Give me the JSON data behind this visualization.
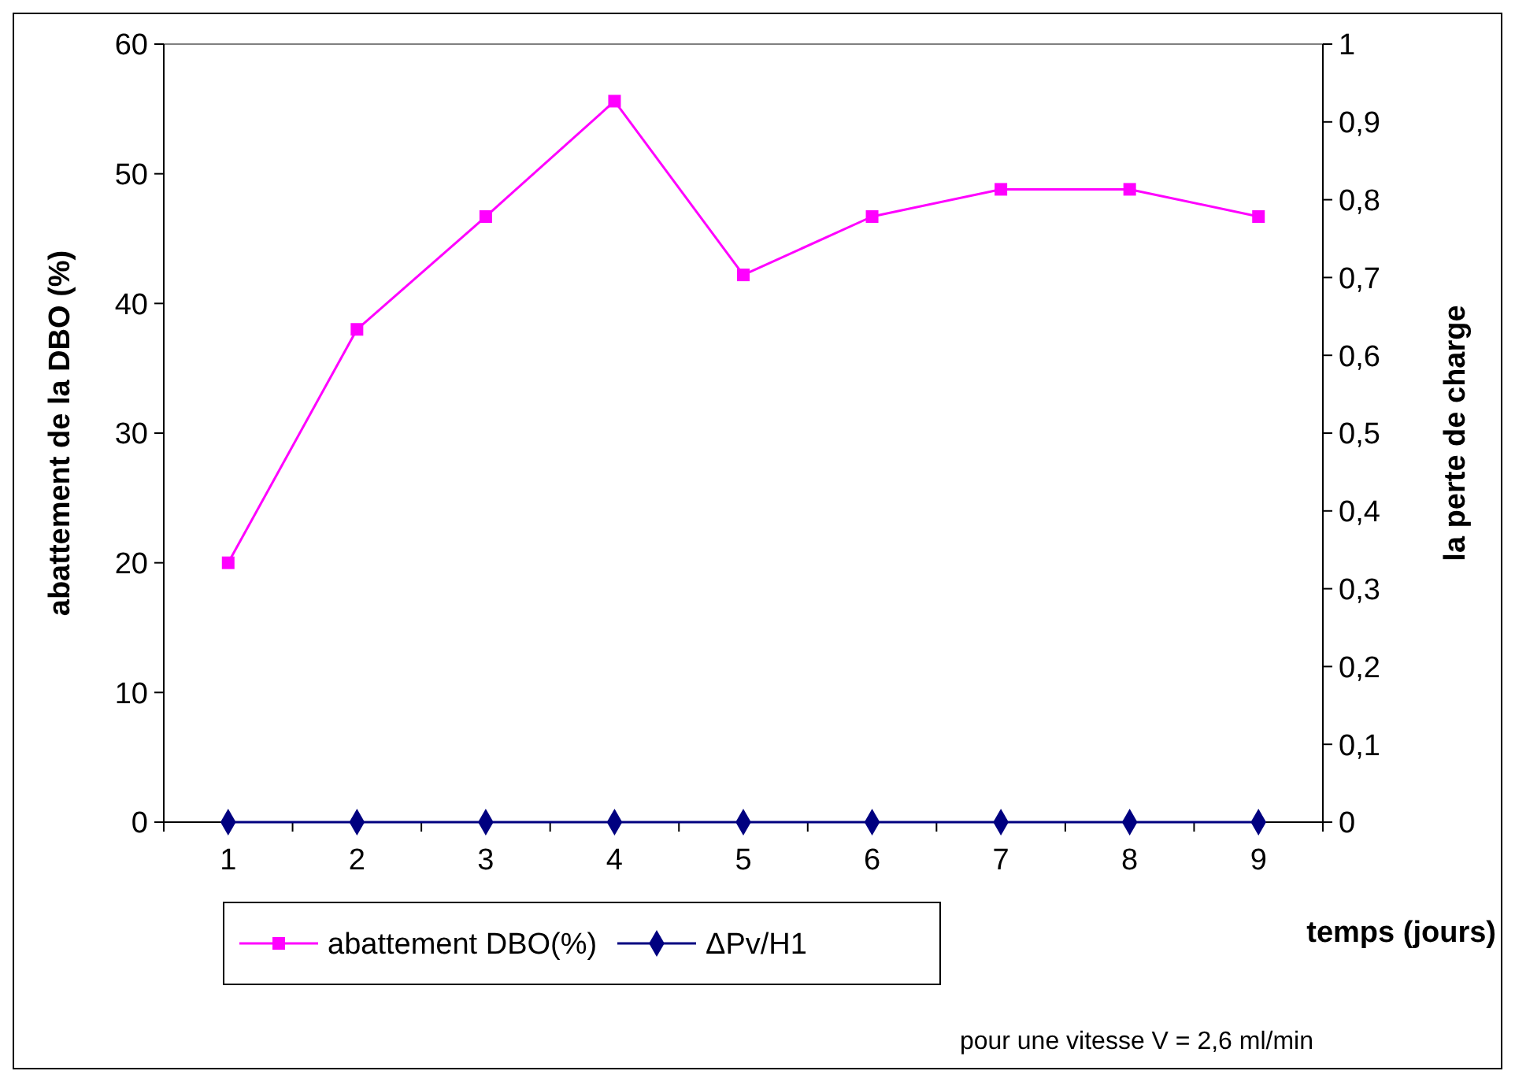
{
  "chart_data": {
    "type": "line",
    "xlabel": "temps (jours)",
    "ylabel": "abattement de la DBO (%)",
    "y2label": "la perte de charge",
    "categories": [
      "1",
      "2",
      "3",
      "4",
      "5",
      "6",
      "7",
      "8",
      "9"
    ],
    "series": [
      {
        "name": "abattement DBO(%)",
        "color": "#ff00ff",
        "marker": "square",
        "values": [
          20,
          38,
          46.7,
          55.6,
          42.2,
          46.7,
          48.8,
          48.8,
          46.7
        ]
      },
      {
        "name": "ΔPv/H1",
        "color": "#000080",
        "marker": "diamond",
        "axis": "y2",
        "values": [
          0,
          0,
          0,
          0,
          0,
          0,
          0,
          0,
          0
        ]
      }
    ],
    "ylim": [
      0,
      60
    ],
    "yticks": [
      0,
      10,
      20,
      30,
      40,
      50,
      60
    ],
    "y2lim": [
      0,
      1
    ],
    "y2ticks": [
      0,
      {
        "value": 0.1,
        "label": "0,1"
      },
      {
        "value": 0.2,
        "label": "0,2"
      },
      {
        "value": 0.3,
        "label": "0,3"
      },
      {
        "value": 0.4,
        "label": "0,4"
      },
      {
        "value": 0.5,
        "label": "0,5"
      },
      {
        "value": 0.6,
        "label": "0,6"
      },
      {
        "value": 0.7,
        "label": "0,7"
      },
      {
        "value": 0.8,
        "label": "0,8"
      },
      {
        "value": 0.9,
        "label": "0,9"
      },
      1
    ],
    "grid": false,
    "legend": "bottom left",
    "line_style": "solid",
    "annotations": [
      "pour une vitesse V = 2,6 ml/min"
    ]
  }
}
